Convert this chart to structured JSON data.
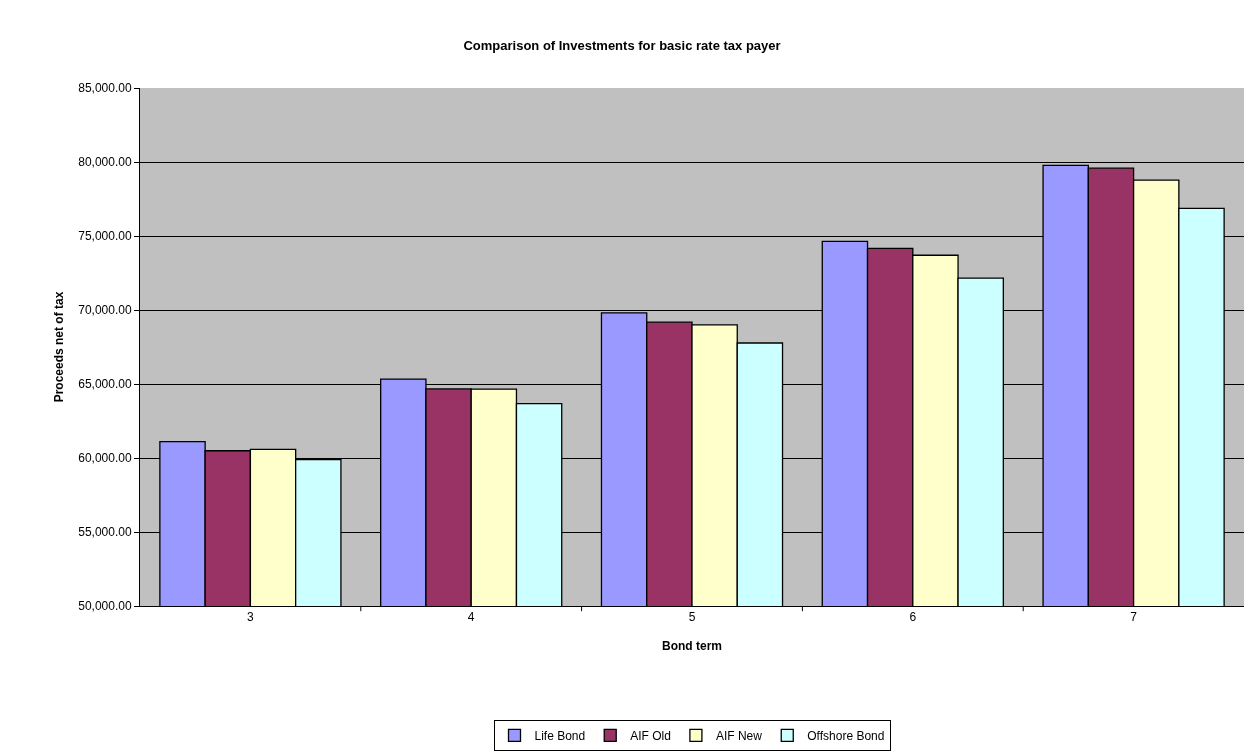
{
  "chart_data": {
    "type": "bar",
    "title": "Comparison of Investments for basic rate tax payer",
    "xlabel": "Bond term",
    "ylabel": "Proceeds net of tax",
    "categories": [
      "3",
      "4",
      "5",
      "6",
      "7"
    ],
    "series": [
      {
        "name": "Life Bond",
        "color": "#9999ff",
        "values": [
          61110,
          65330,
          69810,
          74640,
          79770
        ]
      },
      {
        "name": "AIF Old",
        "color": "#993366",
        "values": [
          60490,
          64670,
          69180,
          74170,
          79580
        ]
      },
      {
        "name": "AIF New",
        "color": "#ffffcc",
        "values": [
          60580,
          64650,
          68990,
          73700,
          78780
        ]
      },
      {
        "name": "Offshore Bond",
        "color": "#ccffff",
        "values": [
          59890,
          63670,
          67770,
          72160,
          76870
        ]
      }
    ],
    "ylim": [
      50000,
      85000
    ],
    "yticks": [
      {
        "value": 50000,
        "label": "50,000.00"
      },
      {
        "value": 55000,
        "label": "55,000.00"
      },
      {
        "value": 60000,
        "label": "60,000.00"
      },
      {
        "value": 65000,
        "label": "65,000.00"
      },
      {
        "value": 70000,
        "label": "70,000.00"
      },
      {
        "value": 75000,
        "label": "75,000.00"
      },
      {
        "value": 80000,
        "label": "80,000.00"
      },
      {
        "value": 85000,
        "label": "85,000.00"
      }
    ],
    "grid": "y",
    "legend": "bottom"
  }
}
